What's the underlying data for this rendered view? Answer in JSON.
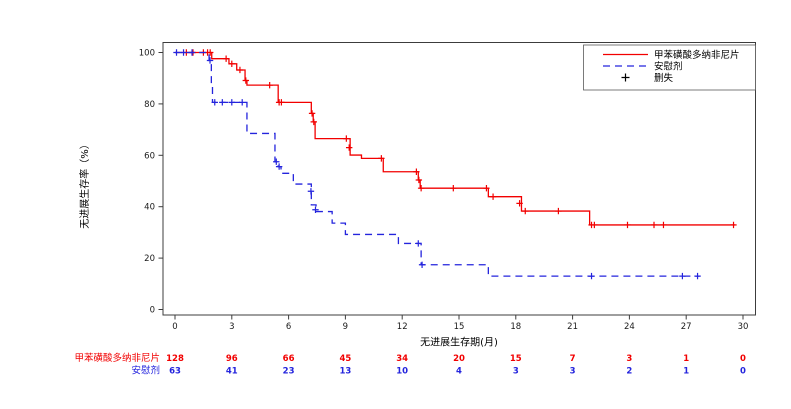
{
  "chart_data": {
    "type": "line",
    "subtype": "kaplan-meier-step",
    "title": "",
    "xlabel": "无进展生存期(月)",
    "ylabel": "无进展生存率（%）",
    "xlim": [
      0,
      30
    ],
    "ylim": [
      0,
      100
    ],
    "xticks": [
      0,
      3,
      6,
      9,
      12,
      15,
      18,
      21,
      24,
      27,
      30
    ],
    "yticks": [
      0,
      20,
      40,
      60,
      80,
      100
    ],
    "grid": false,
    "legend_position": "top-right-inside",
    "frame_color": "#3c3c3c",
    "series": [
      {
        "name": "甲苯磺酸多纳非尼片",
        "color": "#f20000",
        "line_style": "solid",
        "end_month": 29.6,
        "steps": [
          [
            0,
            100
          ],
          [
            1.94,
            97.6
          ],
          [
            2.85,
            95.6
          ],
          [
            3.26,
            93.2
          ],
          [
            3.7,
            89.1
          ],
          [
            3.8,
            87.3
          ],
          [
            5.45,
            80.6
          ],
          [
            7.2,
            76.3
          ],
          [
            7.3,
            73.0
          ],
          [
            7.4,
            66.5
          ],
          [
            9.25,
            60.1
          ],
          [
            9.85,
            58.8
          ],
          [
            11.0,
            53.6
          ],
          [
            12.85,
            50.4
          ],
          [
            12.95,
            47.2
          ],
          [
            16.55,
            43.9
          ],
          [
            18.3,
            38.3
          ],
          [
            21.9,
            32.9
          ]
        ],
        "censors": [
          [
            0.6,
            100
          ],
          [
            0.95,
            100
          ],
          [
            1.5,
            100
          ],
          [
            1.72,
            100
          ],
          [
            1.86,
            100
          ],
          [
            2.7,
            97.6
          ],
          [
            3.0,
            95.6
          ],
          [
            3.43,
            93.2
          ],
          [
            3.74,
            89.1
          ],
          [
            5.0,
            87.3
          ],
          [
            5.5,
            80.6
          ],
          [
            5.62,
            80.6
          ],
          [
            7.24,
            76.3
          ],
          [
            7.33,
            73.0
          ],
          [
            9.05,
            66.5
          ],
          [
            9.2,
            63.0
          ],
          [
            10.9,
            58.8
          ],
          [
            12.75,
            53.6
          ],
          [
            12.88,
            50.4
          ],
          [
            13.0,
            47.2
          ],
          [
            14.7,
            47.2
          ],
          [
            16.45,
            47.2
          ],
          [
            16.8,
            43.9
          ],
          [
            18.2,
            41.3
          ],
          [
            18.5,
            38.3
          ],
          [
            20.25,
            38.3
          ],
          [
            22.0,
            32.9
          ],
          [
            22.15,
            32.9
          ],
          [
            23.9,
            32.9
          ],
          [
            25.3,
            32.9
          ],
          [
            25.8,
            32.9
          ],
          [
            29.5,
            32.9
          ]
        ]
      },
      {
        "name": "安慰剂",
        "color": "#2424dd",
        "line_style": "dashed",
        "end_month": 27.7,
        "steps": [
          [
            0,
            100
          ],
          [
            1.8,
            96.9
          ],
          [
            1.92,
            88.0
          ],
          [
            1.98,
            80.6
          ],
          [
            3.8,
            68.5
          ],
          [
            5.28,
            57.5
          ],
          [
            5.45,
            55.6
          ],
          [
            5.6,
            53.0
          ],
          [
            6.25,
            48.8
          ],
          [
            7.2,
            40.7
          ],
          [
            7.45,
            38.1
          ],
          [
            8.3,
            33.6
          ],
          [
            9.0,
            29.2
          ],
          [
            11.8,
            25.7
          ],
          [
            13.0,
            17.4
          ],
          [
            16.55,
            13.0
          ]
        ],
        "censors": [
          [
            0.08,
            100
          ],
          [
            0.45,
            100
          ],
          [
            0.9,
            100
          ],
          [
            1.85,
            96.9
          ],
          [
            2.1,
            80.6
          ],
          [
            2.5,
            80.6
          ],
          [
            3.0,
            80.6
          ],
          [
            3.55,
            80.6
          ],
          [
            5.35,
            57.5
          ],
          [
            5.5,
            55.6
          ],
          [
            7.18,
            46.0
          ],
          [
            7.42,
            38.8
          ],
          [
            12.85,
            25.7
          ],
          [
            13.05,
            17.4
          ],
          [
            22.0,
            13.0
          ],
          [
            26.8,
            13.0
          ],
          [
            27.6,
            13.0
          ]
        ]
      }
    ],
    "risk_table": {
      "time_points": [
        0,
        3,
        6,
        9,
        12,
        15,
        18,
        21,
        24,
        27,
        30
      ],
      "rows": [
        {
          "label": "甲苯磺酸多纳非尼片",
          "color": "#f20000",
          "counts": [
            "128",
            "96",
            "66",
            "45",
            "34",
            "20",
            "15",
            "7",
            "3",
            "1",
            "0"
          ]
        },
        {
          "label": "安慰剂",
          "color": "#2424dd",
          "counts": [
            "63",
            "41",
            "23",
            "13",
            "10",
            "4",
            "3",
            "3",
            "2",
            "1",
            "0"
          ]
        }
      ]
    }
  },
  "legend": {
    "entries": [
      {
        "label": "甲苯磺酸多纳非尼片",
        "marker": "red-solid-line"
      },
      {
        "label": "安慰剂",
        "marker": "blue-dashed-line"
      },
      {
        "label": "删失",
        "marker": "plus-symbol"
      }
    ]
  },
  "axes": {
    "x_title": "无进展生存期(月)",
    "y_title": "无进展生存率（%）"
  }
}
